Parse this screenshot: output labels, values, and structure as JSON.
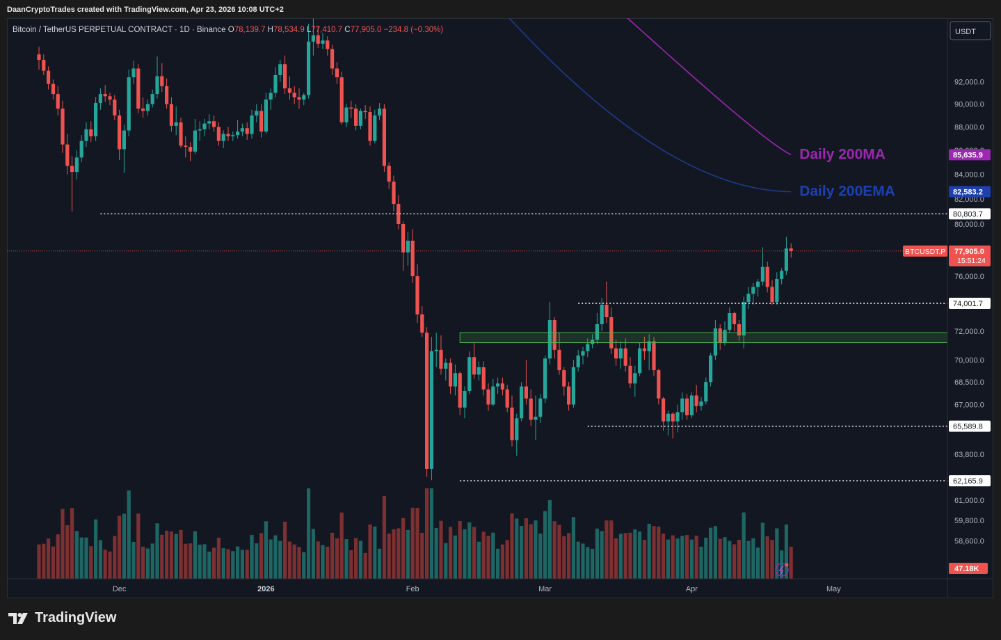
{
  "header": {
    "attribution": "DaanCryptoTrades created with TradingView.com, Apr 23, 2026 10:08 UTC+2"
  },
  "legend": {
    "symbol": "Bitcoin / TetherUS PERPETUAL CONTRACT · 1D · Binance",
    "o_label": "O",
    "o_value": "78,139.7",
    "h_label": "H",
    "h_value": "78,534.9",
    "l_label": "L",
    "l_value": "77,410.7",
    "c_label": "C",
    "c_value": "77,905.0",
    "change": "−234.8 (−0.30%)"
  },
  "axis": {
    "currency": "USDT",
    "price_labels": [
      "92,000.0",
      "90,000.0",
      "88,000.0",
      "86,000.0",
      "84,000.0",
      "82,000.0",
      "80,000.0",
      "76,000.0",
      "72,000.0",
      "70,000.0",
      "68,500.0",
      "67,000.0",
      "63,800.0",
      "61,000.0",
      "59,800.0",
      "58,600.0"
    ],
    "time_labels": [
      "Dec",
      "2026",
      "Feb",
      "Mar",
      "Apr",
      "May"
    ]
  },
  "branding": {
    "name": "TradingView"
  },
  "colors": {
    "up": "#26a69a",
    "down": "#ef5350",
    "ma200": "#9c27b0",
    "ema200": "#1e3a8a",
    "zone": "#4caf50",
    "bg": "#131722"
  },
  "chart_data": {
    "type": "candlestick",
    "title": "",
    "y_scale": "log",
    "ylim": [
      60000,
      94000
    ],
    "x": [
      "Nov 14",
      "Nov 15",
      "Nov 16",
      "Nov 17",
      "Nov 18",
      "Nov 19",
      "Nov 20",
      "Nov 21",
      "Nov 22",
      "Nov 23",
      "Nov 24",
      "Nov 25",
      "Nov 26",
      "Nov 27",
      "Nov 28",
      "Nov 29",
      "Nov 30",
      "Dec 1",
      "Dec 2",
      "Dec 3",
      "Dec 4",
      "Dec 5",
      "Dec 6",
      "Dec 7",
      "Dec 8",
      "Dec 9",
      "Dec 10",
      "Dec 11",
      "Dec 12",
      "Dec 13",
      "Dec 14",
      "Dec 15",
      "Dec 16",
      "Dec 17",
      "Dec 18",
      "Dec 19",
      "Dec 20",
      "Dec 21",
      "Dec 22",
      "Dec 23",
      "Dec 24",
      "Dec 25",
      "Dec 26",
      "Dec 27",
      "Dec 28",
      "Dec 29",
      "Dec 30",
      "Dec 31",
      "Jan 1",
      "Jan 2",
      "Jan 3",
      "Jan 4",
      "Jan 5",
      "Jan 6",
      "Jan 7",
      "Jan 8",
      "Jan 9",
      "Jan 10",
      "Jan 11",
      "Jan 12",
      "Jan 13",
      "Jan 14",
      "Jan 15",
      "Jan 16",
      "Jan 17",
      "Jan 18",
      "Jan 19",
      "Jan 20",
      "Jan 21",
      "Jan 22",
      "Jan 23",
      "Jan 24",
      "Jan 25",
      "Jan 26",
      "Jan 27",
      "Jan 28",
      "Jan 29",
      "Jan 30",
      "Jan 31",
      "Feb 1",
      "Feb 2",
      "Feb 3",
      "Feb 4",
      "Feb 5",
      "Feb 6",
      "Feb 7",
      "Feb 8",
      "Feb 9",
      "Feb 10",
      "Feb 11",
      "Feb 12",
      "Feb 13",
      "Feb 14",
      "Feb 15",
      "Feb 16",
      "Feb 17",
      "Feb 18",
      "Feb 19",
      "Feb 20",
      "Feb 21",
      "Feb 22",
      "Feb 23",
      "Feb 24",
      "Feb 25",
      "Feb 26",
      "Feb 27",
      "Feb 28",
      "Mar 1",
      "Mar 2",
      "Mar 3",
      "Mar 4",
      "Mar 5",
      "Mar 6",
      "Mar 7",
      "Mar 8",
      "Mar 9",
      "Mar 10",
      "Mar 11",
      "Mar 12",
      "Mar 13",
      "Mar 14",
      "Mar 15",
      "Mar 16",
      "Mar 17",
      "Mar 18",
      "Mar 19",
      "Mar 20",
      "Mar 21",
      "Mar 22",
      "Mar 23",
      "Mar 24",
      "Mar 25",
      "Mar 26",
      "Mar 27",
      "Mar 28",
      "Mar 29",
      "Mar 30",
      "Mar 31",
      "Apr 1",
      "Apr 2",
      "Apr 3",
      "Apr 4",
      "Apr 5",
      "Apr 6",
      "Apr 7",
      "Apr 8",
      "Apr 9",
      "Apr 10",
      "Apr 11",
      "Apr 12",
      "Apr 13",
      "Apr 14",
      "Apr 15",
      "Apr 16",
      "Apr 17",
      "Apr 18",
      "Apr 19",
      "Apr 20",
      "Apr 21",
      "Apr 22",
      "Apr 23"
    ],
    "ohlc": [
      [
        94500,
        95200,
        93100,
        94000
      ],
      [
        94000,
        94500,
        92600,
        93000
      ],
      [
        93000,
        93400,
        91300,
        91800
      ],
      [
        91800,
        92200,
        90400,
        90900
      ],
      [
        90900,
        91600,
        89000,
        89600
      ],
      [
        89600,
        90300,
        85800,
        86500
      ],
      [
        86500,
        87400,
        84000,
        84700
      ],
      [
        84700,
        85500,
        81000,
        84200
      ],
      [
        84200,
        86000,
        83600,
        85400
      ],
      [
        85400,
        87300,
        85000,
        86800
      ],
      [
        86800,
        88400,
        86300,
        87800
      ],
      [
        87800,
        88500,
        86700,
        87200
      ],
      [
        87200,
        90600,
        86800,
        90100
      ],
      [
        90100,
        91400,
        89500,
        90900
      ],
      [
        90900,
        91700,
        90200,
        90700
      ],
      [
        90700,
        91000,
        89900,
        90400
      ],
      [
        90400,
        90800,
        88600,
        89000
      ],
      [
        89000,
        89500,
        85200,
        86100
      ],
      [
        86100,
        88200,
        84100,
        87700
      ],
      [
        87700,
        93100,
        87200,
        92400
      ],
      [
        92400,
        93900,
        91800,
        93200
      ],
      [
        93200,
        93600,
        89200,
        89600
      ],
      [
        89600,
        90600,
        88800,
        89400
      ],
      [
        89400,
        90400,
        89000,
        90000
      ],
      [
        90000,
        91300,
        89700,
        90900
      ],
      [
        90900,
        94300,
        90500,
        92500
      ],
      [
        92500,
        93700,
        91100,
        91600
      ],
      [
        91600,
        92300,
        89600,
        90000
      ],
      [
        90000,
        90600,
        87600,
        88100
      ],
      [
        88100,
        89800,
        87300,
        88400
      ],
      [
        88400,
        88800,
        86200,
        86400
      ],
      [
        86400,
        87200,
        85400,
        86300
      ],
      [
        86300,
        86700,
        85100,
        85900
      ],
      [
        85900,
        88700,
        85700,
        87700
      ],
      [
        87700,
        88500,
        86800,
        87800
      ],
      [
        87800,
        88700,
        87200,
        88300
      ],
      [
        88300,
        89100,
        87800,
        88500
      ],
      [
        88500,
        89000,
        87600,
        88000
      ],
      [
        88000,
        88400,
        86400,
        86800
      ],
      [
        86800,
        87700,
        86200,
        87400
      ],
      [
        87400,
        88000,
        86800,
        87200
      ],
      [
        87200,
        87600,
        86800,
        87300
      ],
      [
        87300,
        88600,
        87000,
        87600
      ],
      [
        87600,
        88300,
        87200,
        87900
      ],
      [
        87900,
        88400,
        86900,
        87400
      ],
      [
        87400,
        89500,
        87000,
        89000
      ],
      [
        89000,
        90000,
        88400,
        89400
      ],
      [
        89400,
        90000,
        87100,
        87600
      ],
      [
        87600,
        91000,
        87400,
        90400
      ],
      [
        90400,
        91400,
        89500,
        91000
      ],
      [
        91000,
        93300,
        90600,
        92600
      ],
      [
        92600,
        94000,
        92000,
        93600
      ],
      [
        93600,
        94400,
        90900,
        91400
      ],
      [
        91400,
        92500,
        90400,
        91000
      ],
      [
        91000,
        91600,
        90000,
        90600
      ],
      [
        90600,
        91400,
        89600,
        90400
      ],
      [
        90400,
        91000,
        89900,
        90800
      ],
      [
        90800,
        97400,
        90500,
        95700
      ],
      [
        95700,
        97900,
        94400,
        96300
      ],
      [
        96300,
        97200,
        95100,
        95500
      ],
      [
        95500,
        96500,
        95000,
        95800
      ],
      [
        95800,
        96200,
        94400,
        95000
      ],
      [
        95000,
        95400,
        92600,
        93200
      ],
      [
        93200,
        93800,
        91800,
        92400
      ],
      [
        92400,
        92900,
        88200,
        88400
      ],
      [
        88400,
        90000,
        88000,
        89700
      ],
      [
        89700,
        90300,
        88800,
        89600
      ],
      [
        89600,
        90000,
        87700,
        88100
      ],
      [
        88100,
        89600,
        87800,
        89400
      ],
      [
        89400,
        89900,
        88700,
        89300
      ],
      [
        89300,
        89800,
        86400,
        86800
      ],
      [
        86800,
        89500,
        86600,
        89000
      ],
      [
        89000,
        90100,
        88600,
        89600
      ],
      [
        89600,
        90000,
        84200,
        84700
      ],
      [
        84700,
        85000,
        82800,
        83400
      ],
      [
        83400,
        83900,
        81000,
        81600
      ],
      [
        81600,
        82300,
        79600,
        80000
      ],
      [
        80000,
        80200,
        76400,
        77800
      ],
      [
        77800,
        79400,
        76800,
        78700
      ],
      [
        78700,
        79600,
        75500,
        76000
      ],
      [
        76000,
        76900,
        72600,
        73200
      ],
      [
        73200,
        73800,
        71600,
        71900
      ],
      [
        71900,
        72300,
        62400,
        62900
      ],
      [
        62900,
        71600,
        62200,
        70600
      ],
      [
        70600,
        71900,
        69500,
        70700
      ],
      [
        70700,
        71700,
        69000,
        69400
      ],
      [
        69400,
        70100,
        68600,
        69800
      ],
      [
        69800,
        70100,
        67700,
        68200
      ],
      [
        68200,
        69700,
        67600,
        69100
      ],
      [
        69100,
        69200,
        66300,
        66800
      ],
      [
        66800,
        68200,
        66100,
        67900
      ],
      [
        67900,
        70600,
        67700,
        70200
      ],
      [
        70200,
        71200,
        68700,
        69000
      ],
      [
        69000,
        69900,
        68600,
        69500
      ],
      [
        69500,
        69900,
        67600,
        68000
      ],
      [
        68000,
        68400,
        66600,
        67000
      ],
      [
        67000,
        68700,
        66900,
        68200
      ],
      [
        68200,
        68800,
        67700,
        68400
      ],
      [
        68400,
        68800,
        67600,
        68000
      ],
      [
        68000,
        68300,
        66500,
        66800
      ],
      [
        66800,
        67600,
        64300,
        64700
      ],
      [
        64700,
        66400,
        63700,
        66100
      ],
      [
        66100,
        68500,
        65900,
        68200
      ],
      [
        68200,
        70000,
        67000,
        67400
      ],
      [
        67400,
        68000,
        65600,
        66000
      ],
      [
        66000,
        67600,
        64700,
        66200
      ],
      [
        66200,
        67700,
        65800,
        67400
      ],
      [
        67400,
        70300,
        67100,
        70100
      ],
      [
        70100,
        74100,
        69700,
        72800
      ],
      [
        72800,
        73000,
        70100,
        70700
      ],
      [
        70700,
        71900,
        69000,
        69300
      ],
      [
        69300,
        69500,
        67600,
        68200
      ],
      [
        68200,
        68500,
        66600,
        67000
      ],
      [
        67000,
        70000,
        66800,
        69500
      ],
      [
        69500,
        70700,
        69200,
        70300
      ],
      [
        70300,
        70900,
        69700,
        70600
      ],
      [
        70600,
        71500,
        70200,
        71100
      ],
      [
        71100,
        71800,
        70800,
        71400
      ],
      [
        71400,
        73300,
        71100,
        72500
      ],
      [
        72500,
        74400,
        72000,
        73900
      ],
      [
        73900,
        75600,
        72600,
        73000
      ],
      [
        73000,
        73700,
        70400,
        70800
      ],
      [
        70800,
        71400,
        69600,
        70100
      ],
      [
        70100,
        71300,
        69400,
        70800
      ],
      [
        70800,
        71500,
        69200,
        69600
      ],
      [
        69600,
        70200,
        68100,
        68400
      ],
      [
        68400,
        69600,
        67500,
        69100
      ],
      [
        69100,
        71200,
        68900,
        70800
      ],
      [
        70800,
        71600,
        70000,
        70600
      ],
      [
        70600,
        71800,
        69300,
        71300
      ],
      [
        71300,
        71600,
        68900,
        69300
      ],
      [
        69300,
        69400,
        67000,
        67400
      ],
      [
        67400,
        67500,
        65300,
        65900
      ],
      [
        65900,
        66600,
        65000,
        66400
      ],
      [
        66400,
        66500,
        64800,
        65900
      ],
      [
        65900,
        67000,
        65200,
        66500
      ],
      [
        66500,
        67800,
        66000,
        67400
      ],
      [
        67400,
        67700,
        66000,
        66300
      ],
      [
        66300,
        67800,
        66100,
        67600
      ],
      [
        67600,
        68300,
        66500,
        66900
      ],
      [
        66900,
        67500,
        66600,
        67200
      ],
      [
        67200,
        68800,
        67000,
        68500
      ],
      [
        68500,
        70500,
        68200,
        70300
      ],
      [
        70300,
        72800,
        70000,
        72200
      ],
      [
        72200,
        72500,
        70700,
        71200
      ],
      [
        71200,
        72700,
        71000,
        72100
      ],
      [
        72100,
        73700,
        71900,
        73300
      ],
      [
        73300,
        73400,
        72000,
        72500
      ],
      [
        72500,
        72800,
        71300,
        71700
      ],
      [
        71700,
        74500,
        70800,
        74100
      ],
      [
        74100,
        75200,
        73600,
        74700
      ],
      [
        74700,
        75500,
        73900,
        75200
      ],
      [
        75200,
        75800,
        74500,
        75600
      ],
      [
        75600,
        78200,
        75300,
        76700
      ],
      [
        76700,
        77100,
        74800,
        75200
      ],
      [
        75200,
        75700,
        73900,
        74100
      ],
      [
        74100,
        76300,
        73900,
        75800
      ],
      [
        75800,
        76600,
        75400,
        76400
      ],
      [
        76400,
        79000,
        76100,
        78100
      ],
      [
        78100,
        78500,
        77400,
        77900
      ]
    ],
    "volume_labels": {
      "current": "47.18K"
    },
    "overlays": [
      {
        "name": "Daily 200MA",
        "value": "85,635.9"
      },
      {
        "name": "Daily 200EMA",
        "value": "82,583.2"
      }
    ],
    "levels": [
      "80,803.7",
      "74,001.7",
      "65,589.8",
      "62,165.9"
    ],
    "zone": [
      71200,
      71900
    ],
    "last_price": {
      "symbol": "BTCUSDT.P",
      "price": "77,905.0",
      "countdown": "15:51:24"
    }
  }
}
